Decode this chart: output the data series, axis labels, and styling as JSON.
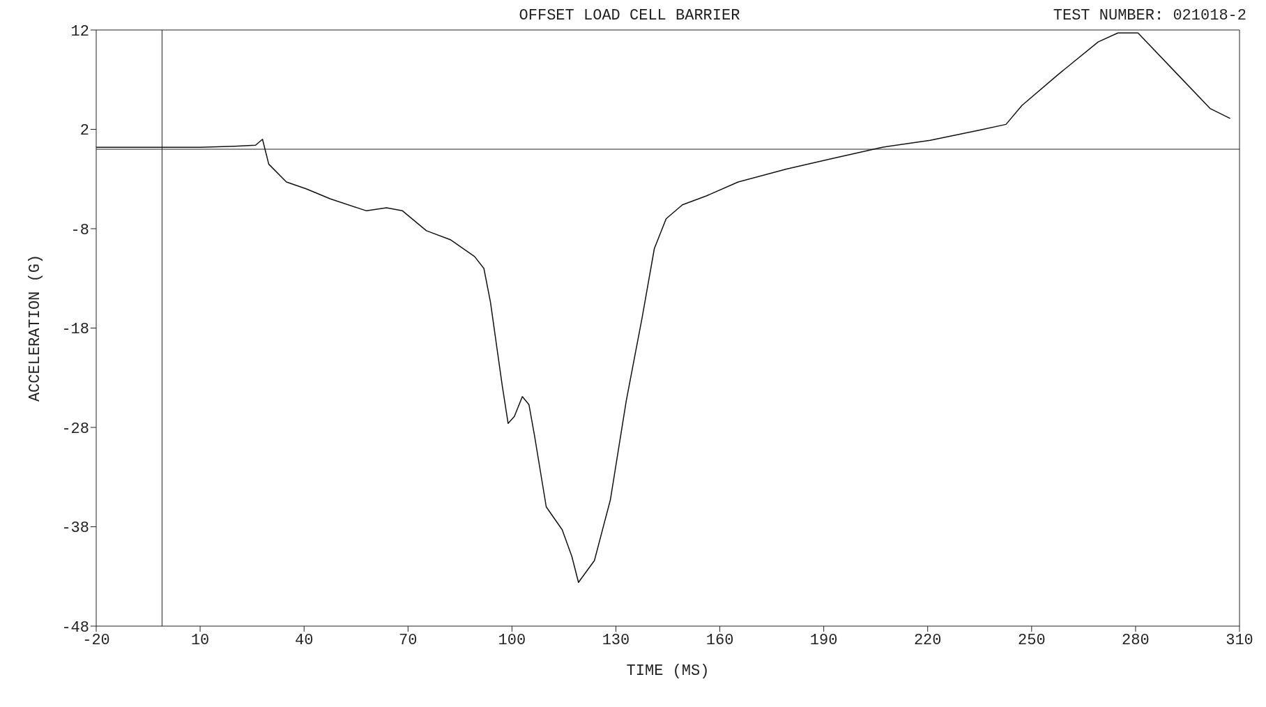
{
  "chart_data": {
    "type": "line",
    "title": "OFFSET LOAD CELL BARRIER",
    "xlabel": "TIME  (MS)",
    "ylabel": "ACCELERATION  (G)",
    "annotations": [
      "TEST NUMBER: 021018-2"
    ],
    "x": [
      -20,
      0,
      10,
      20,
      26,
      28,
      29.8,
      34.9,
      40.7,
      47.6,
      58,
      63.8,
      68.4,
      75.3,
      82.2,
      89.2,
      91.9,
      93.8,
      97.2,
      98.9,
      100.7,
      103,
      104.9,
      106.5,
      109.9,
      114.5,
      117.3,
      119.2,
      123.8,
      128.4,
      133,
      137.6,
      141.1,
      144.5,
      149.2,
      156.1,
      165.3,
      179.2,
      193,
      206.9,
      220.7,
      234.6,
      242.6,
      247.2,
      257.6,
      269.2,
      274.9,
      280.7,
      292.2,
      301.5,
      307.3
    ],
    "series": [
      {
        "color": "#111111",
        "values": [
          0.2,
          0.2,
          0.2,
          0.3,
          0.4,
          1.0,
          -1.5,
          -3.3,
          -4.0,
          -5.0,
          -6.2,
          -5.9,
          -6.2,
          -8.2,
          -9.1,
          -10.8,
          -12.0,
          -15.4,
          -23.8,
          -27.6,
          -26.9,
          -24.9,
          -25.7,
          -28.8,
          -36,
          -38.3,
          -41,
          -43.6,
          -41.4,
          -35.3,
          -25.3,
          -16.9,
          -10,
          -7,
          -5.6,
          -4.7,
          -3.3,
          -2.0,
          -0.9,
          0.2,
          0.9,
          1.9,
          2.5,
          4.4,
          7.5,
          10.8,
          11.7,
          11.7,
          7.5,
          4.1,
          3.1
        ]
      }
    ],
    "xlim": [
      -20,
      310
    ],
    "xticks": [
      -20,
      10,
      40,
      70,
      100,
      130,
      160,
      190,
      220,
      250,
      280,
      310
    ],
    "ylim": [
      -48,
      12
    ],
    "yticks": [
      -48,
      -38,
      -28,
      -18,
      -8,
      2,
      12
    ],
    "ref_lines": [
      {
        "axis": "x",
        "value": -1
      },
      {
        "axis": "y",
        "value": 0
      }
    ],
    "line_style": "solid",
    "marker": "none"
  }
}
